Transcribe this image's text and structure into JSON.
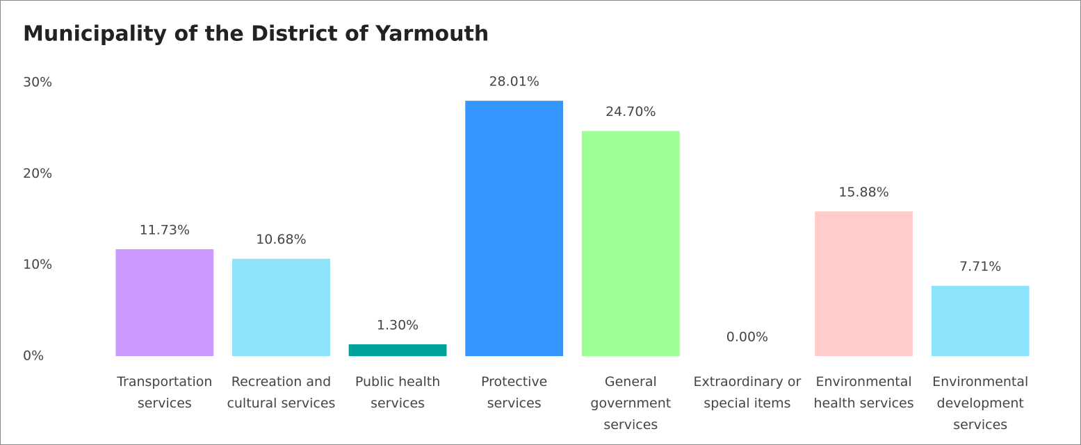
{
  "chart_data": {
    "type": "bar",
    "title": "Municipality of the District of Yarmouth",
    "categories": [
      "Transportation services",
      "Recreation and cultural services",
      "Public health services",
      "Protective services",
      "General government services",
      "Extraordinary or special items",
      "Environmental health services",
      "Environmental development services"
    ],
    "values": [
      11.73,
      10.68,
      1.3,
      28.01,
      24.7,
      0.0,
      15.88,
      7.71
    ],
    "value_labels": [
      "11.73%",
      "10.68%",
      "1.30%",
      "28.01%",
      "24.70%",
      "0.00%",
      "15.88%",
      "7.71%"
    ],
    "colors": [
      "#cc99ff",
      "#8de3fc",
      "#00a19a",
      "#3396ff",
      "#9cff96",
      "#3396ff",
      "#ffcccb",
      "#8de3fc"
    ],
    "ylim": [
      0,
      30
    ],
    "yticks": [
      {
        "value": 0,
        "label": "0%"
      },
      {
        "value": 10,
        "label": "10%"
      },
      {
        "value": 20,
        "label": "20%"
      },
      {
        "value": 30,
        "label": "30%"
      }
    ]
  }
}
